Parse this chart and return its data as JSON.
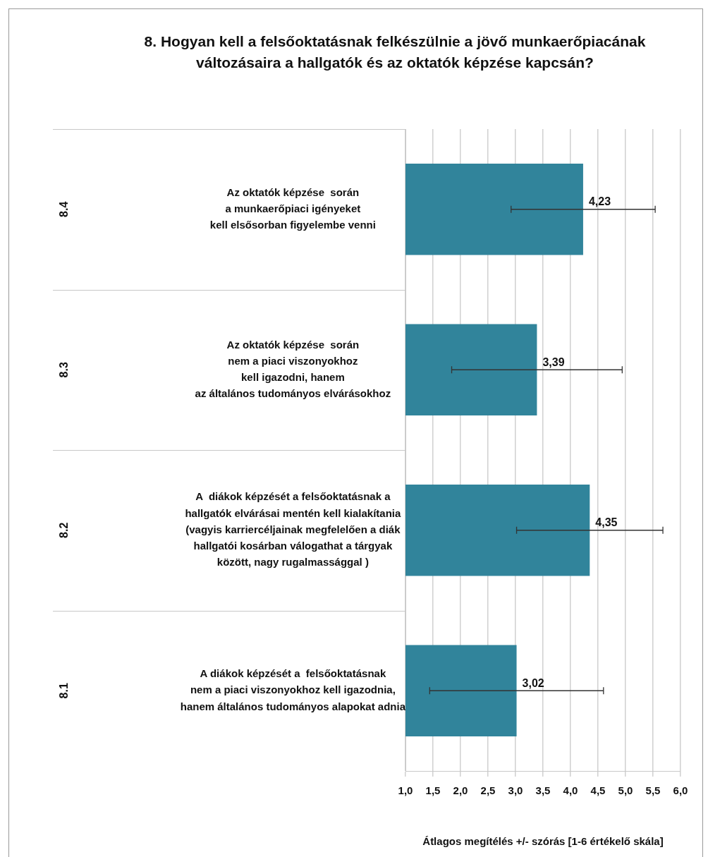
{
  "chart_data": {
    "type": "bar",
    "orientation": "horizontal",
    "title": "8. Hogyan kell a felsőoktatásnak felkészülnie a jövő munkaerőpiacának változásaira a hallgatók és az oktatók képzése kapcsán?",
    "xlabel": "Átlagos megítélés +/- szórás [1-6 értékelő skála]",
    "categories": [
      "Az oktatók képzése  során\na munkaerőpiaci igényeket\nkell elsősorban figyelembe venni",
      "Az oktatók képzése  során\nnem a piaci viszonyokhoz\nkell igazodni, hanem\naz általános tudományos elvárásokhoz",
      "A  diákok képzését a felsőoktatásnak a\nhallgatók elvárásai mentén kell kialakítania\n(vagyis karriercéljainak megfelelően a diák\nhallgatói kosárban válogathat a tárgyak\nközött, nagy rugalmassággal )",
      "A diákok képzését a  felsőoktatásnak\nnem a piaci viszonyokhoz kell igazodnia,\nhanem általános tudományos alapokat adnia"
    ],
    "annotations": [
      "8.4",
      "8.3",
      "8.2",
      "8.1"
    ],
    "values": [
      4.23,
      3.39,
      4.35,
      3.02
    ],
    "errors": [
      1.31,
      1.55,
      1.33,
      1.58
    ],
    "value_labels": [
      "4,23",
      "3,39",
      "4,35",
      "3,02"
    ],
    "color": "#31849b",
    "xlim": [
      1,
      6
    ],
    "xticks": [
      {
        "value": 1,
        "label": "1,0"
      },
      {
        "value": 1.5,
        "label": "1,5"
      },
      {
        "value": 2,
        "label": "2,0"
      },
      {
        "value": 2.5,
        "label": "2,5"
      },
      {
        "value": 3,
        "label": "3,0"
      },
      {
        "value": 3.5,
        "label": "3,5"
      },
      {
        "value": 4,
        "label": "4,0"
      },
      {
        "value": 4.5,
        "label": "4,5"
      },
      {
        "value": 5,
        "label": "5,0"
      },
      {
        "value": 5.5,
        "label": "5,5"
      },
      {
        "value": 6,
        "label": "6,0"
      }
    ],
    "grid": "x",
    "legend": false
  }
}
